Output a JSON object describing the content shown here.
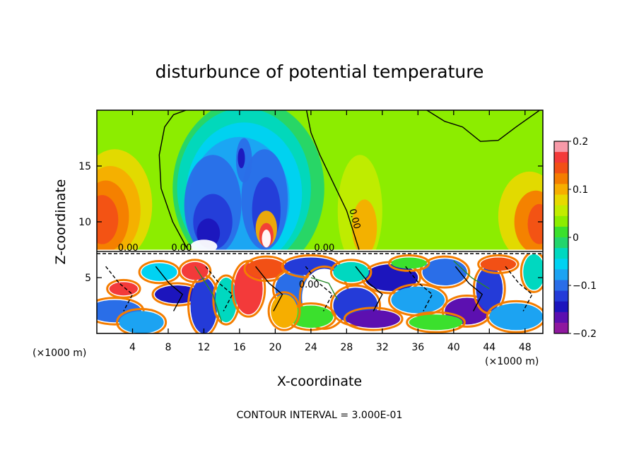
{
  "chart_data": {
    "type": "heatmap",
    "title": "disturbunce of potential temperature",
    "xlabel": "X-coordinate",
    "ylabel": "Z-coordinate",
    "x_unit": "(×1000 m)",
    "y_unit": "(×1000 m)",
    "x_range": [
      0,
      50
    ],
    "y_range": [
      0,
      20
    ],
    "x_ticks": [
      4,
      8,
      12,
      16,
      20,
      24,
      28,
      32,
      36,
      40,
      44,
      48
    ],
    "y_ticks": [
      5,
      10,
      15
    ],
    "colorbar": {
      "range": [
        -0.2,
        0.2
      ],
      "tick_labels": [
        "0.2",
        "0.1",
        "0",
        "−0.1",
        "−0.2"
      ],
      "tick_values": [
        0.2,
        0.1,
        0,
        -0.1,
        -0.2
      ],
      "colors": [
        "#f79aa8",
        "#f33a3a",
        "#f25015",
        "#f47d00",
        "#f6ae00",
        "#e7d900",
        "#c2ec00",
        "#8ced00",
        "#3be02d",
        "#23d56c",
        "#00d8c0",
        "#00d2f2",
        "#1ca3f2",
        "#2a6ee8",
        "#243bd8",
        "#1c15bd",
        "#5c10b0",
        "#8f189f"
      ]
    },
    "contour_labels": [
      "0.00",
      "0.00",
      "0.00",
      "0.00",
      "0.00"
    ],
    "footnote": "CONTOUR INTERVAL = 3.000E-01"
  }
}
